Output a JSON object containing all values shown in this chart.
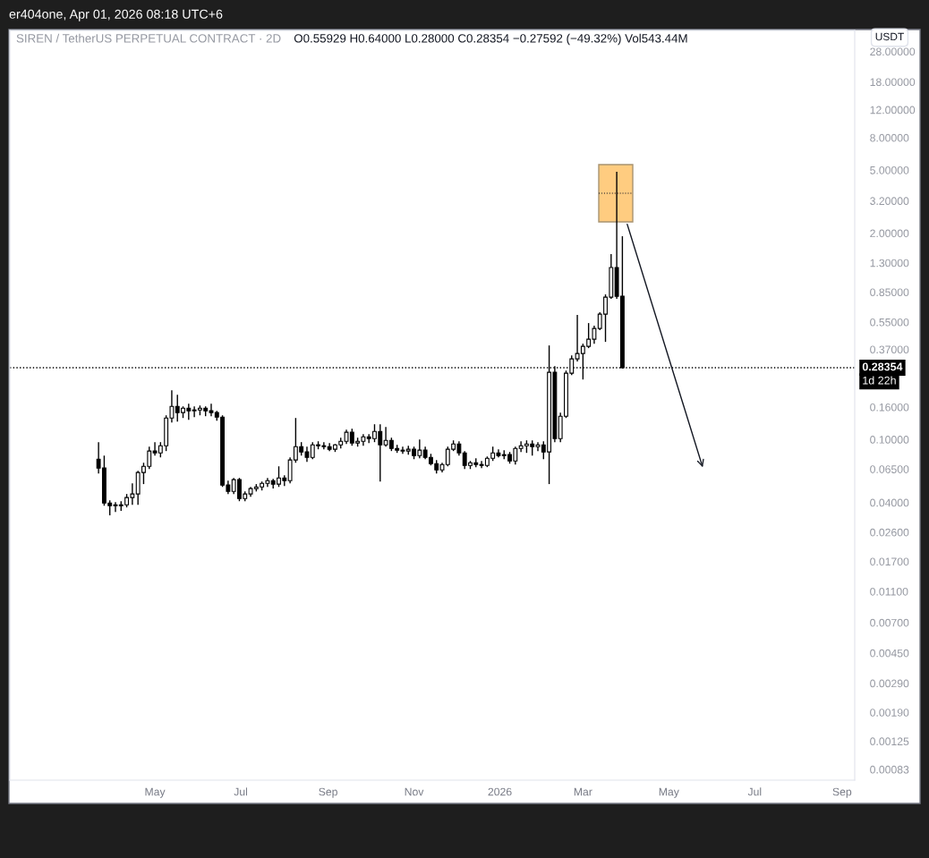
{
  "chart_data": {
    "type": "candlestick",
    "title": "SIREN / TetherUS PERPETUAL CONTRACT · 2D",
    "subtitle": "O0.55929 H0.64000 L0.28000 C0.28354 −0.27592 (−49.32%) Vol543.44M",
    "ylabel": "USDT",
    "annotations": [
      "er404one, Apr 01, 2026 08:18 UTC+6",
      "1d 22h"
    ],
    "color": "#000000",
    "log": true,
    "xlim": [
      "2025-01-18",
      "2026-09-10"
    ],
    "ylim": [
      0.00071,
      38
    ],
    "xticks": [
      {
        "value": "2025-05-01",
        "label": "May"
      },
      {
        "value": "2025-07-01",
        "label": "Jul"
      },
      {
        "value": "2025-09-01",
        "label": "Sep"
      },
      {
        "value": "2025-11-01",
        "label": "Nov"
      },
      {
        "value": "2026-01-01",
        "label": "2026"
      },
      {
        "value": "2026-03-01",
        "label": "Mar"
      },
      {
        "value": "2026-05-01",
        "label": "May"
      },
      {
        "value": "2026-07-01",
        "label": "Jul"
      },
      {
        "value": "2026-09-01",
        "label": "Sep"
      }
    ],
    "yticks": [
      {
        "value": 0.00083,
        "label": "0.00083"
      },
      {
        "value": 0.00125,
        "label": "0.00125"
      },
      {
        "value": 0.0019,
        "label": "0.00190"
      },
      {
        "value": 0.0029,
        "label": "0.00290"
      },
      {
        "value": 0.0045,
        "label": "0.00450"
      },
      {
        "value": 0.007,
        "label": "0.00700"
      },
      {
        "value": 0.011,
        "label": "0.01100"
      },
      {
        "value": 0.017,
        "label": "0.01700"
      },
      {
        "value": 0.026,
        "label": "0.02600"
      },
      {
        "value": 0.04,
        "label": "0.04000"
      },
      {
        "value": 0.065,
        "label": "0.06500"
      },
      {
        "value": 0.1,
        "label": "0.10000"
      },
      {
        "value": 0.16,
        "label": "0.16000"
      },
      {
        "value": 0.37,
        "label": "0.37000"
      },
      {
        "value": 0.55,
        "label": "0.55000"
      },
      {
        "value": 0.85,
        "label": "0.85000"
      },
      {
        "value": 1.3,
        "label": "1.30000"
      },
      {
        "value": 2,
        "label": "2.00000"
      },
      {
        "value": 3.2,
        "label": "3.20000"
      },
      {
        "value": 5,
        "label": "5.00000"
      },
      {
        "value": 8,
        "label": "8.00000"
      },
      {
        "value": 12,
        "label": "12.00000"
      },
      {
        "value": 18,
        "label": "18.00000"
      },
      {
        "value": 28,
        "label": "28.00000"
      }
    ],
    "ref_lines": [
      {
        "axis": "y",
        "value": 0.28354,
        "label": "0.28354",
        "color": "#000000",
        "line_style": "dotted"
      }
    ],
    "x": [
      "2025-03-22",
      "2025-03-26",
      "2025-03-30",
      "2025-04-03",
      "2025-04-07",
      "2025-04-11",
      "2025-04-15",
      "2025-04-19",
      "2025-04-23",
      "2025-04-27",
      "2025-05-01",
      "2025-05-05",
      "2025-05-09",
      "2025-05-13",
      "2025-05-17",
      "2025-05-21",
      "2025-05-25",
      "2025-05-29",
      "2025-06-02",
      "2025-06-06",
      "2025-06-10",
      "2025-06-14",
      "2025-06-18",
      "2025-06-22",
      "2025-06-26",
      "2025-06-30",
      "2025-07-04",
      "2025-07-08",
      "2025-07-12",
      "2025-07-16",
      "2025-07-20",
      "2025-07-24",
      "2025-07-28",
      "2025-08-01",
      "2025-08-05",
      "2025-08-09",
      "2025-08-13",
      "2025-08-17",
      "2025-08-21",
      "2025-08-25",
      "2025-08-29",
      "2025-09-02",
      "2025-09-06",
      "2025-09-10",
      "2025-09-14",
      "2025-09-18",
      "2025-09-22",
      "2025-09-26",
      "2025-09-30",
      "2025-10-04",
      "2025-10-08",
      "2025-10-12",
      "2025-10-16",
      "2025-10-20",
      "2025-10-24",
      "2025-10-28",
      "2025-11-01",
      "2025-11-05",
      "2025-11-09",
      "2025-11-13",
      "2025-11-17",
      "2025-11-21",
      "2025-11-25",
      "2025-11-29",
      "2025-12-03",
      "2025-12-07",
      "2025-12-11",
      "2025-12-15",
      "2025-12-19",
      "2025-12-23",
      "2025-12-27",
      "2025-12-31",
      "2026-01-04",
      "2026-01-08",
      "2026-01-12",
      "2026-01-16",
      "2026-01-20",
      "2026-01-24",
      "2026-01-28",
      "2026-02-01",
      "2026-02-05",
      "2026-02-09",
      "2026-02-13",
      "2026-02-17",
      "2026-02-21",
      "2026-02-25",
      "2026-03-01",
      "2026-03-05",
      "2026-03-09",
      "2026-03-13",
      "2026-03-17",
      "2026-03-21",
      "2026-03-25",
      "2026-03-29"
    ],
    "ohlc": [
      [
        0.0751,
        0.0962,
        0.061,
        0.066
      ],
      [
        0.066,
        0.0791,
        0.0382,
        0.0397
      ],
      [
        0.0397,
        0.0413,
        0.0332,
        0.0382
      ],
      [
        0.0382,
        0.0403,
        0.0349,
        0.0387
      ],
      [
        0.0387,
        0.0408,
        0.0354,
        0.0382
      ],
      [
        0.0387,
        0.0453,
        0.0373,
        0.043
      ],
      [
        0.043,
        0.0529,
        0.0387,
        0.0453
      ],
      [
        0.0453,
        0.0635,
        0.0387,
        0.0619
      ],
      [
        0.0619,
        0.0713,
        0.0523,
        0.0677
      ],
      [
        0.0677,
        0.0901,
        0.0651,
        0.0845
      ],
      [
        0.0845,
        0.0962,
        0.0791,
        0.0823
      ],
      [
        0.0823,
        0.0962,
        0.0771,
        0.0913
      ],
      [
        0.0913,
        0.142,
        0.0845,
        0.1366
      ],
      [
        0.1366,
        0.2045,
        0.128,
        0.1617
      ],
      [
        0.1617,
        0.1916,
        0.1297,
        0.1477
      ],
      [
        0.1477,
        0.1617,
        0.1366,
        0.1576
      ],
      [
        0.1576,
        0.1681,
        0.1331,
        0.1516
      ],
      [
        0.1516,
        0.1617,
        0.1384,
        0.1535
      ],
      [
        0.1535,
        0.1638,
        0.142,
        0.1576
      ],
      [
        0.1576,
        0.1617,
        0.1402,
        0.1516
      ],
      [
        0.1516,
        0.1681,
        0.1402,
        0.1477
      ],
      [
        0.1477,
        0.1516,
        0.1314,
        0.1384
      ],
      [
        0.1384,
        0.142,
        0.0502,
        0.0516
      ],
      [
        0.0516,
        0.055,
        0.0453,
        0.047
      ],
      [
        0.047,
        0.0572,
        0.0453,
        0.0558
      ],
      [
        0.0558,
        0.0572,
        0.0408,
        0.0424
      ],
      [
        0.0424,
        0.047,
        0.0408,
        0.0453
      ],
      [
        0.0453,
        0.0502,
        0.0435,
        0.049
      ],
      [
        0.049,
        0.0523,
        0.047,
        0.0502
      ],
      [
        0.0502,
        0.0543,
        0.0477,
        0.0529
      ],
      [
        0.0529,
        0.0572,
        0.0502,
        0.055
      ],
      [
        0.055,
        0.0565,
        0.049,
        0.0523
      ],
      [
        0.0523,
        0.0677,
        0.0502,
        0.0572
      ],
      [
        0.0572,
        0.0595,
        0.0509,
        0.055
      ],
      [
        0.055,
        0.0771,
        0.0529,
        0.0742
      ],
      [
        0.0742,
        0.1366,
        0.0713,
        0.0901
      ],
      [
        0.0901,
        0.0962,
        0.0791,
        0.0834
      ],
      [
        0.0834,
        0.0901,
        0.0723,
        0.0771
      ],
      [
        0.0771,
        0.0962,
        0.0751,
        0.0925
      ],
      [
        0.0925,
        0.0974,
        0.0867,
        0.0913
      ],
      [
        0.0913,
        0.0962,
        0.0867,
        0.0901
      ],
      [
        0.0901,
        0.095,
        0.0845,
        0.0867
      ],
      [
        0.0867,
        0.0937,
        0.0834,
        0.0925
      ],
      [
        0.0925,
        0.1026,
        0.0878,
        0.0974
      ],
      [
        0.0974,
        0.1153,
        0.0937,
        0.111
      ],
      [
        0.111,
        0.1169,
        0.0913,
        0.095
      ],
      [
        0.095,
        0.1026,
        0.0901,
        0.0974
      ],
      [
        0.0974,
        0.108,
        0.0913,
        0.1039
      ],
      [
        0.1039,
        0.108,
        0.095,
        0.1013
      ],
      [
        0.1013,
        0.1247,
        0.0962,
        0.1124
      ],
      [
        0.1124,
        0.1247,
        0.0543,
        0.0925
      ],
      [
        0.0925,
        0.1199,
        0.0901,
        0.0987
      ],
      [
        0.0987,
        0.1026,
        0.0845,
        0.0878
      ],
      [
        0.0878,
        0.0925,
        0.0823,
        0.0856
      ],
      [
        0.0856,
        0.0901,
        0.0812,
        0.0845
      ],
      [
        0.0845,
        0.0913,
        0.0802,
        0.0867
      ],
      [
        0.0867,
        0.0901,
        0.0751,
        0.0791
      ],
      [
        0.0791,
        0.1,
        0.0761,
        0.0856
      ],
      [
        0.0856,
        0.0901,
        0.0751,
        0.0771
      ],
      [
        0.0771,
        0.0812,
        0.0686,
        0.0704
      ],
      [
        0.0704,
        0.0742,
        0.061,
        0.0643
      ],
      [
        0.0643,
        0.0713,
        0.0619,
        0.0695
      ],
      [
        0.0695,
        0.0901,
        0.0677,
        0.0867
      ],
      [
        0.0867,
        0.0987,
        0.0845,
        0.0937
      ],
      [
        0.0937,
        0.0974,
        0.0791,
        0.0823
      ],
      [
        0.0823,
        0.0845,
        0.0651,
        0.0686
      ],
      [
        0.0686,
        0.0732,
        0.0651,
        0.0713
      ],
      [
        0.0713,
        0.0761,
        0.0669,
        0.0695
      ],
      [
        0.0695,
        0.0732,
        0.066,
        0.0686
      ],
      [
        0.0686,
        0.0781,
        0.0669,
        0.0761
      ],
      [
        0.0761,
        0.0901,
        0.0732,
        0.0823
      ],
      [
        0.0823,
        0.0867,
        0.0771,
        0.0791
      ],
      [
        0.0791,
        0.0856,
        0.0751,
        0.0802
      ],
      [
        0.0802,
        0.0834,
        0.0704,
        0.0732
      ],
      [
        0.0732,
        0.0901,
        0.0695,
        0.0878
      ],
      [
        0.0878,
        0.0974,
        0.0834,
        0.0913
      ],
      [
        0.0913,
        0.0987,
        0.0823,
        0.0937
      ],
      [
        0.0937,
        0.0987,
        0.0791,
        0.0901
      ],
      [
        0.0901,
        0.0962,
        0.0845,
        0.0925
      ],
      [
        0.0925,
        0.0974,
        0.0751,
        0.0834
      ],
      [
        0.0834,
        0.3917,
        0.0523,
        0.2652
      ],
      [
        0.2652,
        0.2904,
        0.0962,
        0.1013
      ],
      [
        0.1013,
        0.1477,
        0.0962,
        0.1402
      ],
      [
        0.1402,
        0.272,
        0.1366,
        0.2618
      ],
      [
        0.2618,
        0.3394,
        0.255,
        0.3224
      ],
      [
        0.3224,
        0.6094,
        0.31,
        0.3483
      ],
      [
        0.3483,
        0.4019,
        0.2389,
        0.3866
      ],
      [
        0.3866,
        0.542,
        0.3767,
        0.429
      ],
      [
        0.429,
        0.5214,
        0.4019,
        0.5014
      ],
      [
        0.5014,
        0.6336,
        0.4886,
        0.6174
      ],
      [
        0.6174,
        0.8219,
        0.4125,
        0.7904
      ],
      [
        0.7904,
        1.476,
        0.7701,
        1.214
      ],
      [
        1.214,
        4.88,
        0.7701,
        0.8
      ],
      [
        0.8,
        1.913,
        0.28,
        0.28354
      ]
    ]
  }
}
